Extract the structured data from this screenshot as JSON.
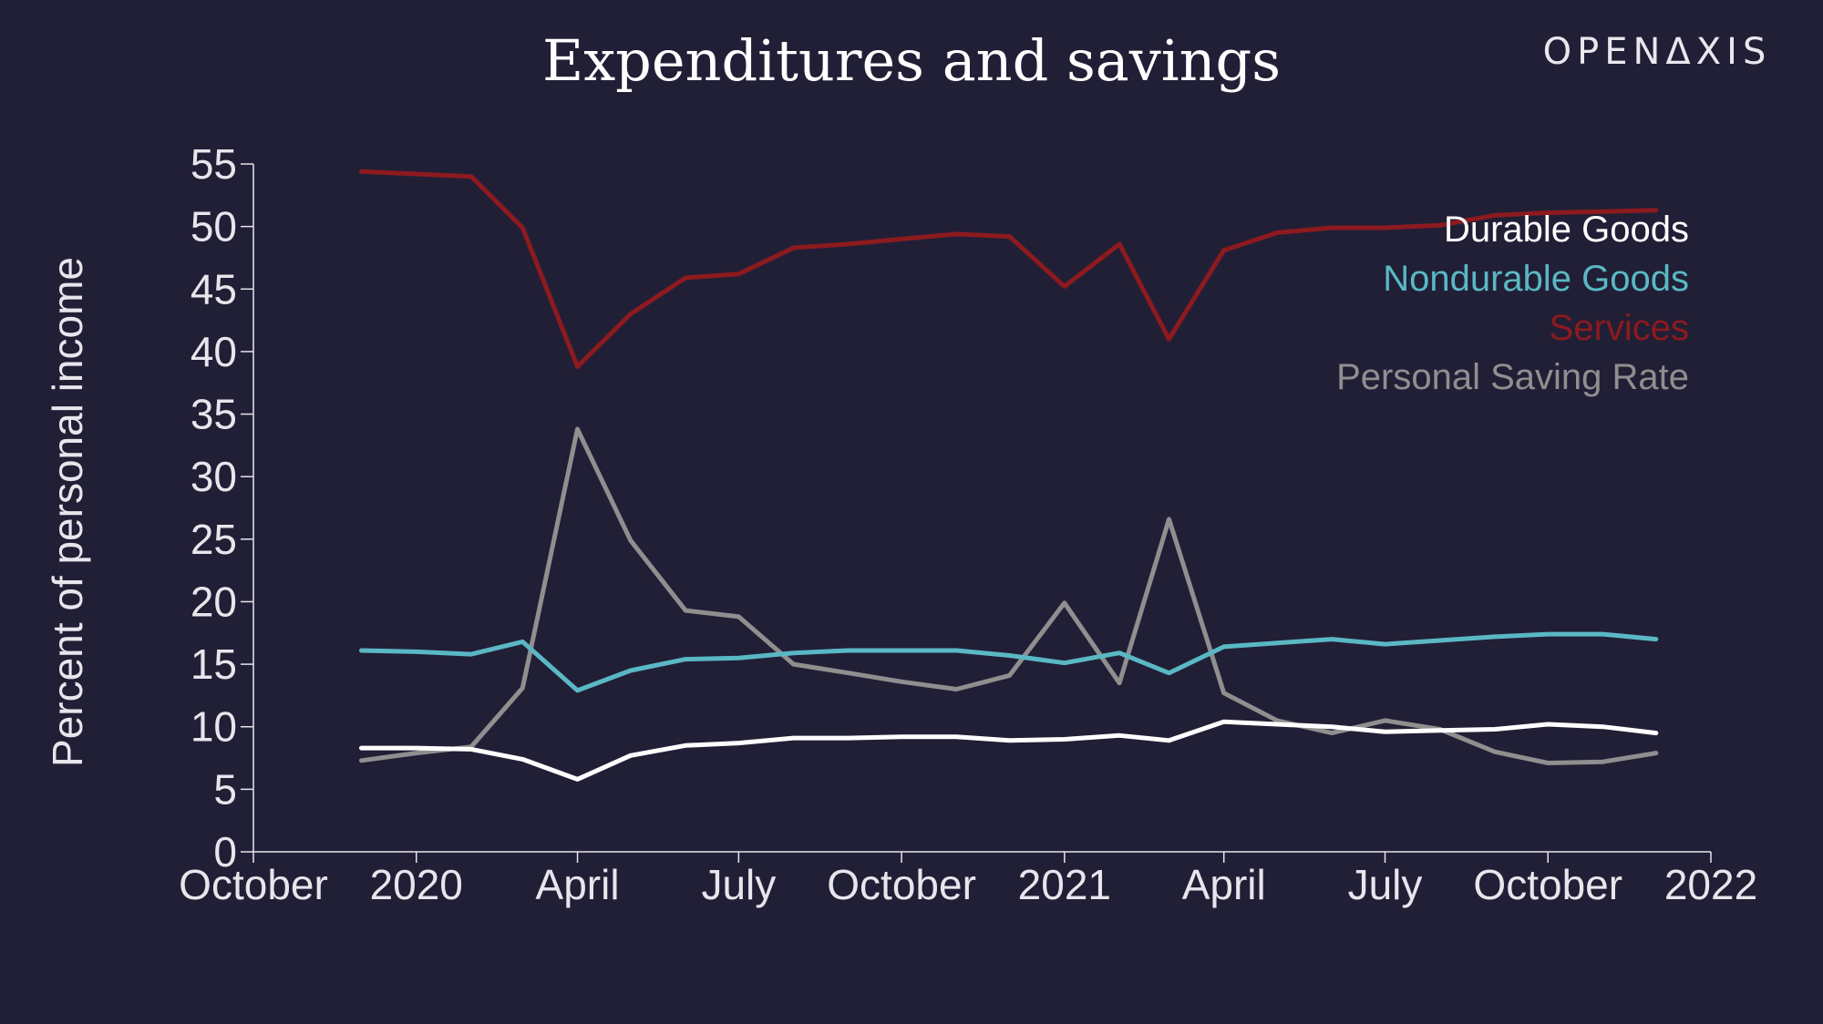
{
  "brand": "OPENΔXIS",
  "chart_data": {
    "type": "line",
    "title": "Expenditures and savings",
    "xlabel": "",
    "ylabel": "Percent of personal income",
    "ylim": [
      0,
      55
    ],
    "yticks": [
      0,
      5,
      10,
      15,
      20,
      25,
      30,
      35,
      40,
      45,
      50,
      55
    ],
    "xlim": [
      "2019-10-01",
      "2022-01-01"
    ],
    "xticks": [
      {
        "date": "2019-10-01",
        "label": "October"
      },
      {
        "date": "2020-01-01",
        "label": "2020"
      },
      {
        "date": "2020-04-01",
        "label": "April"
      },
      {
        "date": "2020-07-01",
        "label": "July"
      },
      {
        "date": "2020-10-01",
        "label": "October"
      },
      {
        "date": "2021-01-01",
        "label": "2021"
      },
      {
        "date": "2021-04-01",
        "label": "April"
      },
      {
        "date": "2021-07-01",
        "label": "July"
      },
      {
        "date": "2021-10-01",
        "label": "October"
      },
      {
        "date": "2022-01-01",
        "label": "2022"
      }
    ],
    "grid": false,
    "legend_position": "top-right",
    "x": [
      "2019-12-01",
      "2020-01-01",
      "2020-02-01",
      "2020-03-01",
      "2020-04-01",
      "2020-05-01",
      "2020-06-01",
      "2020-07-01",
      "2020-08-01",
      "2020-09-01",
      "2020-10-01",
      "2020-11-01",
      "2020-12-01",
      "2021-01-01",
      "2021-02-01",
      "2021-03-01",
      "2021-04-01",
      "2021-05-01",
      "2021-06-01",
      "2021-07-01",
      "2021-08-01",
      "2021-09-01",
      "2021-10-01",
      "2021-11-01",
      "2021-12-01"
    ],
    "series": [
      {
        "name": "Durable Goods",
        "color": "#ffffff",
        "values": [
          8.3,
          8.3,
          8.2,
          7.4,
          5.8,
          7.7,
          8.5,
          8.7,
          9.1,
          9.1,
          9.2,
          9.2,
          8.9,
          9.0,
          9.3,
          8.9,
          10.4,
          10.2,
          10.0,
          9.6,
          9.7,
          9.8,
          10.2,
          10.0,
          9.5
        ]
      },
      {
        "name": "Nondurable Goods",
        "color": "#5ab8c4",
        "values": [
          16.1,
          16.0,
          15.8,
          16.8,
          12.9,
          14.5,
          15.4,
          15.5,
          15.9,
          16.1,
          16.1,
          16.1,
          15.7,
          15.1,
          15.9,
          14.3,
          16.4,
          16.7,
          17.0,
          16.6,
          16.9,
          17.2,
          17.4,
          17.4,
          17.0
        ]
      },
      {
        "name": "Services",
        "color": "#8c1a1e",
        "values": [
          54.4,
          54.2,
          54.0,
          49.9,
          38.8,
          43.0,
          45.9,
          46.2,
          48.3,
          48.6,
          49.0,
          49.4,
          49.2,
          45.2,
          48.6,
          41.0,
          48.1,
          49.5,
          49.9,
          49.9,
          50.1,
          50.9,
          51.1,
          51.2,
          51.3
        ]
      },
      {
        "name": "Personal Saving Rate",
        "color": "#8f8f8f",
        "values": [
          7.3,
          7.9,
          8.4,
          13.1,
          33.8,
          24.9,
          19.3,
          18.8,
          15.0,
          14.3,
          13.6,
          13.0,
          14.1,
          19.9,
          13.5,
          26.6,
          12.7,
          10.5,
          9.5,
          10.5,
          9.8,
          8.0,
          7.1,
          7.2,
          7.9
        ]
      }
    ]
  }
}
